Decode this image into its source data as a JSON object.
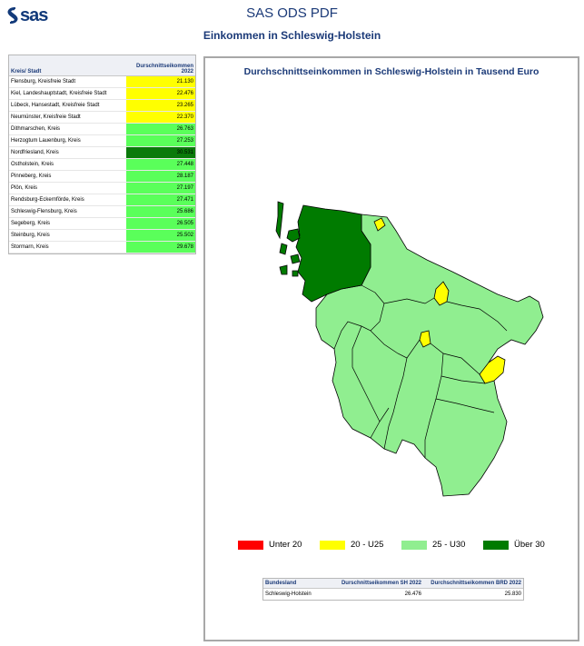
{
  "header": {
    "logo_text": "sas",
    "title": "SAS ODS PDF",
    "subtitle": "Einkommen in Schleswig-Holstein"
  },
  "left_table": {
    "col1": "Kreis/ Stadt",
    "col2": "Durschnittseikommen 2022",
    "rows": [
      {
        "name": "Flensburg, Kreisfreie Stadt",
        "value": "21.130",
        "color": "#ffff00"
      },
      {
        "name": "Kiel, Landeshauptstadt, Kreisfreie Stadt",
        "value": "22.476",
        "color": "#ffff00"
      },
      {
        "name": "Lübeck, Hansestadt, Kreisfreie Stadt",
        "value": "23.265",
        "color": "#ffff00"
      },
      {
        "name": "Neumünster, Kreisfreie Stadt",
        "value": "22.370",
        "color": "#ffff00"
      },
      {
        "name": "Dithmarschen, Kreis",
        "value": "26.763",
        "color": "#5aff5a"
      },
      {
        "name": "Herzogtum Lauenburg, Kreis",
        "value": "27.253",
        "color": "#5aff5a"
      },
      {
        "name": "Nordfriesland, Kreis",
        "value": "30.531",
        "color": "#0a7a0a"
      },
      {
        "name": "Ostholstein, Kreis",
        "value": "27.448",
        "color": "#5aff5a"
      },
      {
        "name": "Pinneberg, Kreis",
        "value": "28.187",
        "color": "#5aff5a"
      },
      {
        "name": "Plön, Kreis",
        "value": "27.197",
        "color": "#5aff5a"
      },
      {
        "name": "Rendsburg-Eckernförde, Kreis",
        "value": "27.471",
        "color": "#5aff5a"
      },
      {
        "name": "Schleswig-Flensburg, Kreis",
        "value": "25.686",
        "color": "#5aff5a"
      },
      {
        "name": "Segeberg, Kreis",
        "value": "26.505",
        "color": "#5aff5a"
      },
      {
        "name": "Steinburg, Kreis",
        "value": "25.502",
        "color": "#5aff5a"
      },
      {
        "name": "Stormarn, Kreis",
        "value": "29.678",
        "color": "#5aff5a"
      }
    ]
  },
  "map": {
    "title": "Durchschnittseinkommen in Schleswig-Holstein in Tausend Euro",
    "colors": {
      "mid": "#90ee90",
      "high": "#007b00",
      "low": "#ffff00",
      "very_low": "#ff0000",
      "border": "#000000"
    },
    "legend": [
      {
        "label": "Unter 20",
        "color": "#ff0000"
      },
      {
        "label": "20 - U25",
        "color": "#ffff00"
      },
      {
        "label": "25 - U30",
        "color": "#90ee90"
      },
      {
        "label": "Über 30",
        "color": "#007b00"
      }
    ]
  },
  "bottom_table": {
    "col1": "Bundesland",
    "col2": "Durschnittseikommen SH 2022",
    "col3": "Durchschnittseikommen BRD 2022",
    "row": {
      "name": "Schleswig-Holstein",
      "sh": "26.476",
      "brd": "25.830"
    }
  }
}
